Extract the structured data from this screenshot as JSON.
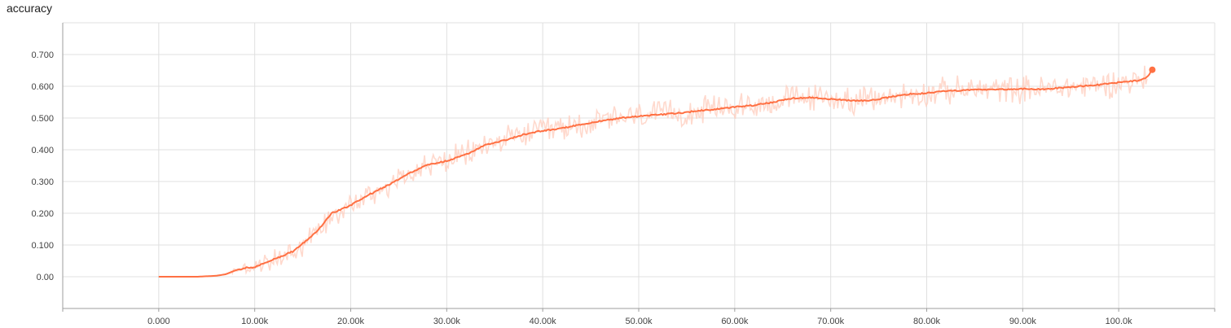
{
  "chart_data": {
    "type": "line",
    "title": "accuracy",
    "xlabel": "",
    "ylabel": "",
    "xlim": [
      -10000,
      110000
    ],
    "ylim": [
      -0.1,
      0.8
    ],
    "x_ticks": [
      0,
      10000,
      20000,
      30000,
      40000,
      50000,
      60000,
      70000,
      80000,
      90000,
      100000
    ],
    "x_tick_labels": [
      "0.000",
      "10.00k",
      "20.00k",
      "30.00k",
      "40.00k",
      "50.00k",
      "60.00k",
      "70.00k",
      "80.00k",
      "90.00k",
      "100.0k"
    ],
    "y_ticks": [
      0,
      0.1,
      0.2,
      0.3,
      0.4,
      0.5,
      0.6,
      0.7
    ],
    "y_tick_labels": [
      "0.00",
      "0.100",
      "0.200",
      "0.300",
      "0.400",
      "0.500",
      "0.600",
      "0.700"
    ],
    "grid": true,
    "colors": {
      "smoothed": "#ff7043",
      "raw": "#ffccbc",
      "grid": "#e0e0e0",
      "axis": "#9e9e9e"
    },
    "series": [
      {
        "x": [
          0,
          2000,
          4000,
          6000,
          7000,
          8000,
          9000,
          10000,
          12000,
          14000,
          15000,
          16000,
          17000,
          18000,
          20000,
          22000,
          24000,
          26000,
          28000,
          30000,
          32000,
          34000,
          36000,
          38000,
          40000,
          42000,
          44000,
          46000,
          48000,
          50000,
          52000,
          54000,
          56000,
          58000,
          60000,
          62000,
          64000,
          66000,
          68000,
          70000,
          72000,
          74000,
          76000,
          78000,
          80000,
          82000,
          84000,
          86000,
          88000,
          90000,
          92000,
          94000,
          96000,
          98000,
          100000,
          102000,
          103000,
          103500
        ],
        "y": [
          0.0,
          0.0,
          0.0,
          0.003,
          0.008,
          0.02,
          0.028,
          0.03,
          0.055,
          0.08,
          0.105,
          0.13,
          0.16,
          0.2,
          0.225,
          0.26,
          0.29,
          0.325,
          0.352,
          0.365,
          0.385,
          0.415,
          0.43,
          0.448,
          0.46,
          0.468,
          0.48,
          0.49,
          0.5,
          0.505,
          0.51,
          0.515,
          0.522,
          0.528,
          0.535,
          0.54,
          0.55,
          0.562,
          0.565,
          0.56,
          0.555,
          0.555,
          0.565,
          0.575,
          0.578,
          0.585,
          0.588,
          0.59,
          0.59,
          0.592,
          0.59,
          0.595,
          0.6,
          0.605,
          0.612,
          0.618,
          0.628,
          0.652
        ]
      }
    ]
  }
}
